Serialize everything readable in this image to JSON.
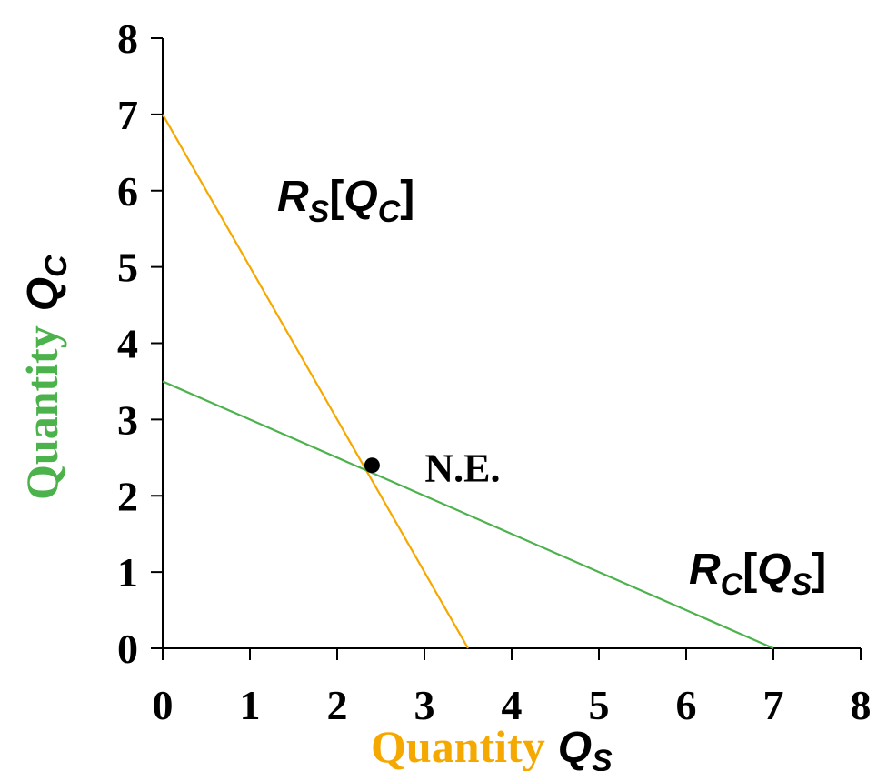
{
  "chart_data": {
    "type": "line",
    "x": {
      "label_word": "Quantity",
      "label_symbol": "Q",
      "label_subscript": "S",
      "range": [
        0,
        8
      ],
      "ticks": [
        0,
        1,
        2,
        3,
        4,
        5,
        6,
        7,
        8
      ],
      "tick_labels": [
        "0",
        "1",
        "2",
        "3",
        "4",
        "5",
        "6",
        "7",
        "8"
      ]
    },
    "y": {
      "label_word": "Quantity",
      "label_symbol": "Q",
      "label_subscript": "C",
      "range": [
        0,
        8
      ],
      "ticks": [
        0,
        1,
        2,
        3,
        4,
        5,
        6,
        7,
        8
      ],
      "tick_labels": [
        "0",
        "1",
        "2",
        "3",
        "4",
        "5",
        "6",
        "7",
        "8"
      ]
    },
    "series": [
      {
        "label_main": "R",
        "label_sub": "S",
        "label_arg": "Q",
        "label_arg_sub": "C",
        "color": "#f5a800",
        "points": [
          [
            0,
            7
          ],
          [
            3.5,
            0
          ]
        ]
      },
      {
        "label_main": "R",
        "label_sub": "C",
        "label_arg": "Q",
        "label_arg_sub": "S",
        "color": "#4cb24c",
        "points": [
          [
            0,
            3.5
          ],
          [
            7,
            0
          ]
        ]
      }
    ],
    "annotations": [
      {
        "text": "N.E.",
        "x": 2.4,
        "y": 2.4
      }
    ],
    "grid": false,
    "x_label_color": "#f5a800",
    "y_label_color": "#4cb24c"
  }
}
